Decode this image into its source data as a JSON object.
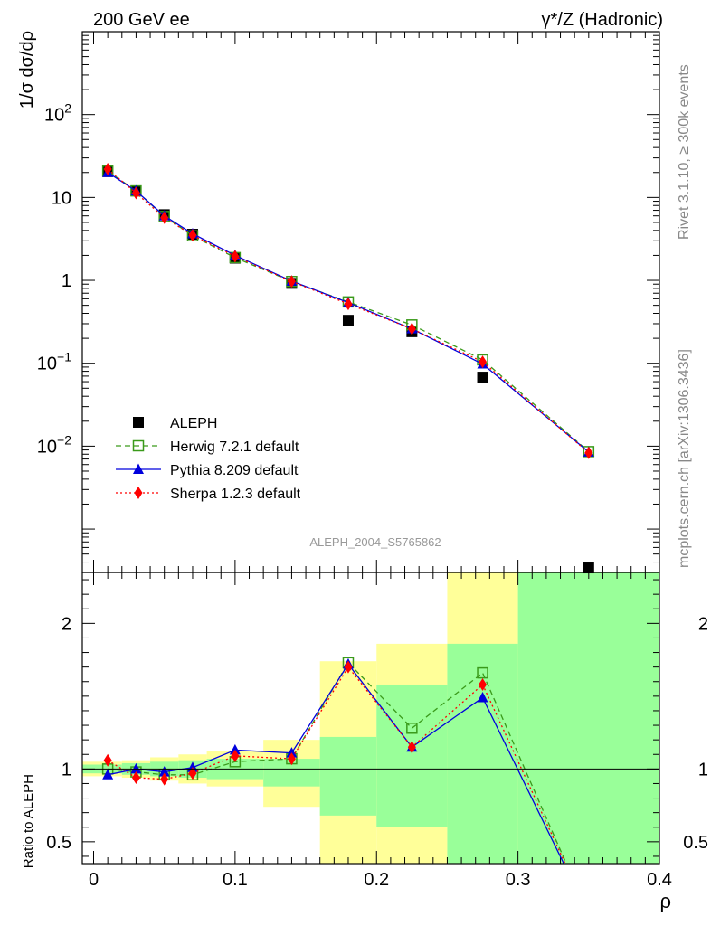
{
  "header": {
    "left": "200 GeV ee",
    "right": "γ*/Z (Hadronic)"
  },
  "side_text": {
    "rivet": "Rivet 3.1.10, ≥ 300k events",
    "mcplots": "mcplots.cern.ch [arXiv:1306.3436]"
  },
  "analysis_id": "ALEPH_2004_S5765862",
  "axes": {
    "main_ylabel": "1/σ  dσ/dρ",
    "ratio_ylabel": "Ratio to ALEPH",
    "xlabel": "ρ"
  },
  "legend": {
    "items": [
      {
        "key": "data",
        "label": "ALEPH"
      },
      {
        "key": "herwig",
        "label": "Herwig 7.2.1 default"
      },
      {
        "key": "pythia",
        "label": "Pythia 8.209 default"
      },
      {
        "key": "sherpa",
        "label": "Sherpa 1.2.3 default"
      }
    ]
  },
  "chart_data": [
    {
      "type": "line",
      "panel": "main",
      "xlim": [
        -0.008,
        0.4
      ],
      "ylim": [
        0.0003,
        1000
      ],
      "yscale": "log",
      "x_ticks": [
        0,
        0.1,
        0.2,
        0.3,
        0.4
      ],
      "y_ticks": [
        {
          "value": 0.01,
          "label": "10",
          "exp": "−2"
        },
        {
          "value": 0.1,
          "label": "10",
          "exp": "−1"
        },
        {
          "value": 1,
          "label": "1",
          "exp": ""
        },
        {
          "value": 10,
          "label": "10",
          "exp": ""
        },
        {
          "value": 100,
          "label": "10",
          "exp": "2"
        }
      ],
      "x": [
        0.01,
        0.03,
        0.05,
        0.07,
        0.1,
        0.14,
        0.18,
        0.225,
        0.275,
        0.35
      ],
      "series": [
        {
          "name": "ALEPH",
          "key": "data",
          "color": "#000000",
          "values": [
            20.5,
            12.0,
            6.2,
            3.6,
            1.85,
            0.92,
            0.33,
            0.24,
            0.068,
            0.00034
          ]
        },
        {
          "name": "Herwig 7.2.1 default",
          "key": "herwig",
          "color": "#3a9a1a",
          "values": [
            20.8,
            12.0,
            5.9,
            3.45,
            1.88,
            0.97,
            0.55,
            0.29,
            0.11,
            0.0086
          ]
        },
        {
          "name": "Pythia 8.209 default",
          "key": "pythia",
          "color": "#0000dd",
          "values": [
            20.0,
            12.0,
            6.0,
            3.65,
            2.0,
            0.98,
            0.54,
            0.26,
            0.098,
            0.0085
          ]
        },
        {
          "name": "Sherpa 1.2.3 default",
          "key": "sherpa",
          "color": "#ff0000",
          "values": [
            22.0,
            11.3,
            5.7,
            3.5,
            1.95,
            0.97,
            0.52,
            0.26,
            0.104,
            0.0083
          ]
        }
      ]
    },
    {
      "type": "line",
      "panel": "ratio",
      "xlim": [
        -0.008,
        0.4
      ],
      "ylim": [
        0.35,
        2.35
      ],
      "y_ticks": [
        {
          "value": 0.5,
          "label": "0.5"
        },
        {
          "value": 1,
          "label": "1"
        },
        {
          "value": 2,
          "label": "2"
        }
      ],
      "x_ticks": [
        {
          "value": 0,
          "label": "0"
        },
        {
          "value": 0.1,
          "label": "0.1"
        },
        {
          "value": 0.2,
          "label": "0.2"
        },
        {
          "value": 0.3,
          "label": "0.3"
        },
        {
          "value": 0.4,
          "label": "0.4"
        }
      ],
      "x": [
        0.01,
        0.03,
        0.05,
        0.07,
        0.1,
        0.14,
        0.18,
        0.225,
        0.275,
        0.35
      ],
      "series": [
        {
          "name": "Herwig 7.2.1 default",
          "key": "herwig",
          "color": "#3a9a1a",
          "values": [
            1.0,
            0.98,
            0.96,
            0.96,
            1.05,
            1.07,
            1.73,
            1.28,
            1.66,
            0.0
          ]
        },
        {
          "name": "Pythia 8.209 default",
          "key": "pythia",
          "color": "#0000dd",
          "values": [
            0.96,
            1.0,
            0.98,
            1.01,
            1.13,
            1.11,
            1.72,
            1.15,
            1.49,
            0.0
          ]
        },
        {
          "name": "Sherpa 1.2.3 default",
          "key": "sherpa",
          "color": "#ff0000",
          "values": [
            1.06,
            0.94,
            0.93,
            0.97,
            1.09,
            1.07,
            1.7,
            1.15,
            1.58,
            0.0
          ]
        }
      ],
      "bands": [
        {
          "x0": -0.008,
          "x1": 0.02,
          "y_lo": 0.95,
          "y_hi": 1.05,
          "inner_lo": 0.97,
          "inner_hi": 1.03
        },
        {
          "x0": 0.02,
          "x1": 0.04,
          "y_lo": 0.94,
          "y_hi": 1.06,
          "inner_lo": 0.96,
          "inner_hi": 1.04
        },
        {
          "x0": 0.04,
          "x1": 0.06,
          "y_lo": 0.92,
          "y_hi": 1.08,
          "inner_lo": 0.95,
          "inner_hi": 1.05
        },
        {
          "x0": 0.06,
          "x1": 0.08,
          "y_lo": 0.9,
          "y_hi": 1.1,
          "inner_lo": 0.94,
          "inner_hi": 1.06
        },
        {
          "x0": 0.08,
          "x1": 0.12,
          "y_lo": 0.88,
          "y_hi": 1.12,
          "inner_lo": 0.93,
          "inner_hi": 1.07
        },
        {
          "x0": 0.12,
          "x1": 0.16,
          "y_lo": 0.74,
          "y_hi": 1.2,
          "inner_lo": 0.88,
          "inner_hi": 1.07
        },
        {
          "x0": 0.16,
          "x1": 0.2,
          "y_lo": 0.35,
          "y_hi": 1.74,
          "inner_lo": 0.68,
          "inner_hi": 1.22
        },
        {
          "x0": 0.2,
          "x1": 0.25,
          "y_lo": 0.35,
          "y_hi": 1.86,
          "inner_lo": 0.6,
          "inner_hi": 1.58
        },
        {
          "x0": 0.25,
          "x1": 0.3,
          "y_lo": 0.35,
          "y_hi": 2.35,
          "inner_lo": 0.35,
          "inner_hi": 1.86
        },
        {
          "x0": 0.3,
          "x1": 0.4,
          "y_lo": 0.35,
          "y_hi": 2.35,
          "inner_lo": 0.35,
          "inner_hi": 2.35
        }
      ],
      "band_colors": {
        "outer": "#ffff99",
        "inner": "#99ff99"
      }
    }
  ]
}
